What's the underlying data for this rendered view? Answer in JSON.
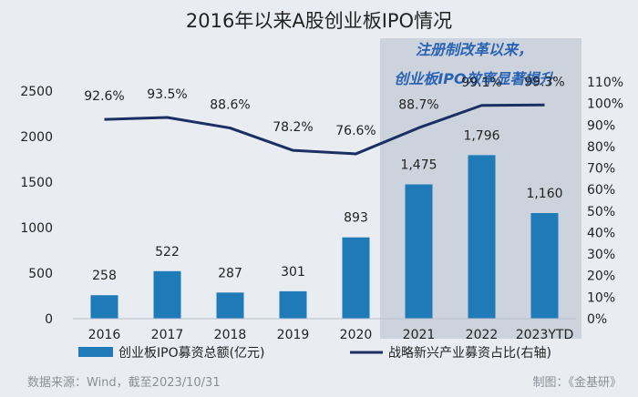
{
  "chart_data": {
    "type": "bar+line",
    "title": "2016年以来A股创业板IPO情况",
    "annotation_line1": "注册制改革以来，",
    "annotation_line2": "创业板IPO效率显著提升",
    "categories": [
      "2016",
      "2017",
      "2018",
      "2019",
      "2020",
      "2021",
      "2022",
      "2023YTD"
    ],
    "series": [
      {
        "name": "创业板IPO募资总额(亿元)",
        "type": "bar",
        "axis": "left",
        "values": [
          258,
          522,
          287,
          301,
          893,
          1475,
          1796,
          1160
        ],
        "labels": [
          "258",
          "522",
          "287",
          "301",
          "893",
          "1,475",
          "1,796",
          "1,160"
        ]
      },
      {
        "name": "战略新兴产业募资占比(右轴)",
        "type": "line",
        "axis": "right",
        "values": [
          92.6,
          93.5,
          88.6,
          78.2,
          76.6,
          88.7,
          99.1,
          99.3
        ],
        "labels": [
          "92.6%",
          "93.5%",
          "88.6%",
          "78.2%",
          "76.6%",
          "88.7%",
          "99.1%",
          "99.3%"
        ]
      }
    ],
    "y_left": {
      "min": 0,
      "max": 2500,
      "ticks": [
        "0",
        "500",
        "1000",
        "1500",
        "2000",
        "2500"
      ]
    },
    "y_right": {
      "min": 0,
      "max": 110,
      "ticks": [
        "0%",
        "10%",
        "20%",
        "30%",
        "40%",
        "50%",
        "60%",
        "70%",
        "80%",
        "90%",
        "100%",
        "110%"
      ]
    },
    "highlight_categories": [
      "2021",
      "2022",
      "2023YTD"
    ],
    "grid": false,
    "legend_position": "bottom"
  },
  "colors": {
    "bar": "#1f7ab8",
    "line": "#1b2f63",
    "highlight": "#cdd3dc",
    "annotation": "#2a63b3",
    "text": "#222222"
  },
  "footer": {
    "source": "数据来源：Wind，截至2023/10/31",
    "credit": "制图：《金基研》"
  }
}
